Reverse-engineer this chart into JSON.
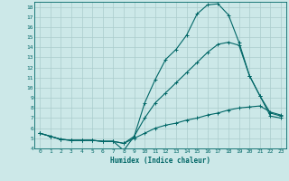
{
  "title": "",
  "xlabel": "Humidex (Indice chaleur)",
  "bg_color": "#cce8e8",
  "grid_color": "#aacccc",
  "line_color": "#006666",
  "xlim": [
    -0.5,
    23.5
  ],
  "ylim": [
    4.0,
    18.5
  ],
  "xticks": [
    0,
    1,
    2,
    3,
    4,
    5,
    6,
    7,
    8,
    9,
    10,
    11,
    12,
    13,
    14,
    15,
    16,
    17,
    18,
    19,
    20,
    21,
    22,
    23
  ],
  "yticks": [
    4,
    5,
    6,
    7,
    8,
    9,
    10,
    11,
    12,
    13,
    14,
    15,
    16,
    17,
    18
  ],
  "line1_x": [
    0,
    1,
    2,
    3,
    4,
    5,
    6,
    7,
    8,
    9,
    10,
    11,
    12,
    13,
    14,
    15,
    16,
    17,
    18,
    19,
    20,
    21,
    22,
    23
  ],
  "line1_y": [
    5.5,
    5.2,
    4.9,
    4.8,
    4.8,
    4.8,
    4.7,
    4.7,
    3.8,
    5.2,
    8.5,
    10.8,
    12.8,
    13.8,
    15.2,
    17.3,
    18.2,
    18.3,
    17.2,
    14.5,
    11.2,
    9.2,
    7.2,
    7.0
  ],
  "line2_x": [
    0,
    1,
    2,
    3,
    4,
    5,
    6,
    7,
    8,
    9,
    10,
    11,
    12,
    13,
    14,
    15,
    16,
    17,
    18,
    19,
    20,
    21,
    22,
    23
  ],
  "line2_y": [
    5.5,
    5.2,
    4.9,
    4.8,
    4.8,
    4.8,
    4.7,
    4.7,
    4.5,
    5.2,
    7.0,
    8.5,
    9.5,
    10.5,
    11.5,
    12.5,
    13.5,
    14.3,
    14.5,
    14.2,
    11.2,
    9.2,
    7.5,
    7.2
  ],
  "line3_x": [
    0,
    1,
    2,
    3,
    4,
    5,
    6,
    7,
    8,
    9,
    10,
    11,
    12,
    13,
    14,
    15,
    16,
    17,
    18,
    19,
    20,
    21,
    22,
    23
  ],
  "line3_y": [
    5.5,
    5.2,
    4.9,
    4.8,
    4.8,
    4.8,
    4.7,
    4.7,
    4.5,
    5.0,
    5.5,
    6.0,
    6.3,
    6.5,
    6.8,
    7.0,
    7.3,
    7.5,
    7.8,
    8.0,
    8.1,
    8.2,
    7.6,
    7.3
  ]
}
